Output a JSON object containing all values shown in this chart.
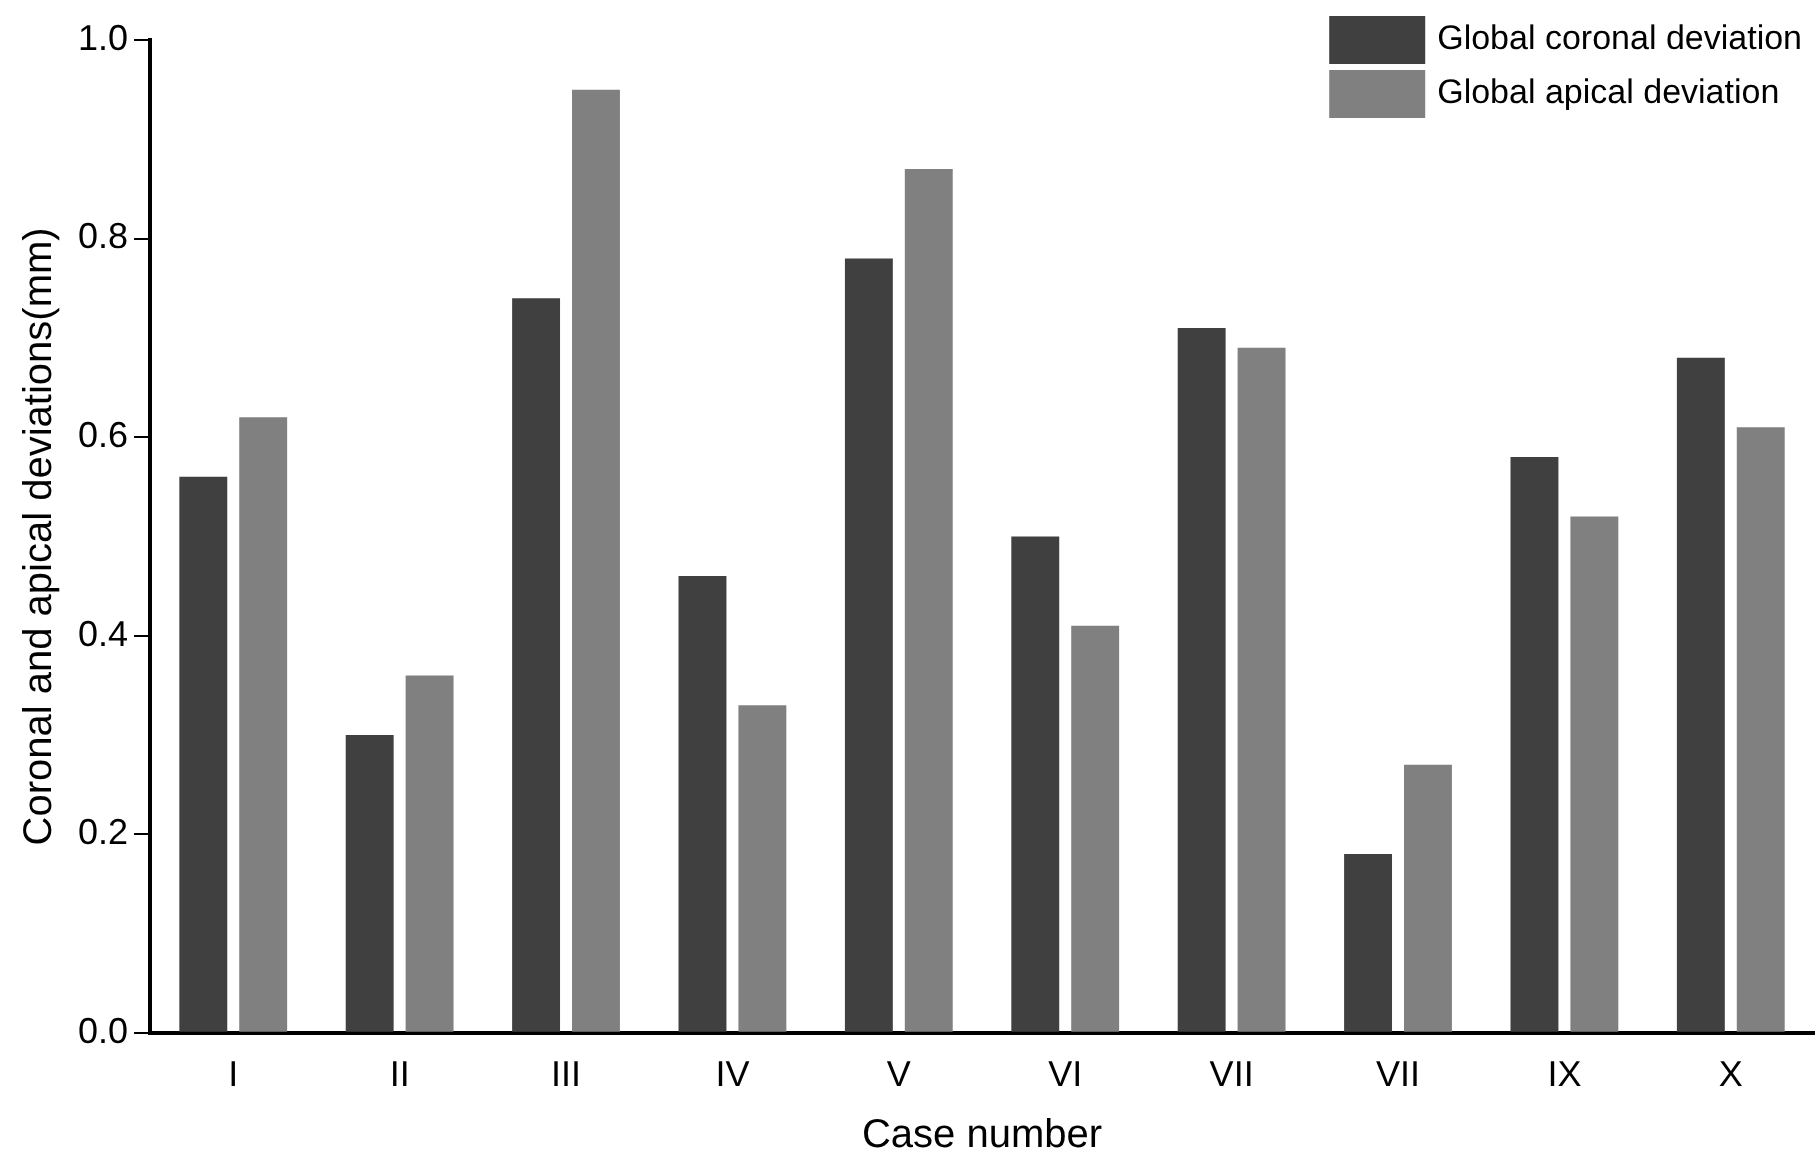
{
  "chart_data": {
    "type": "bar",
    "xlabel": "Case number",
    "ylabel": "Coronal and apical deviations(mm)",
    "categories": [
      "I",
      "II",
      "III",
      "IV",
      "V",
      "VI",
      "VII",
      "VII",
      "IX",
      "X"
    ],
    "series": [
      {
        "name": "Global coronal deviation",
        "color": "#404040",
        "values": [
          0.56,
          0.3,
          0.74,
          0.46,
          0.78,
          0.5,
          0.71,
          0.18,
          0.58,
          0.68
        ]
      },
      {
        "name": "Global apical deviation",
        "color": "#808080",
        "values": [
          0.62,
          0.36,
          0.95,
          0.33,
          0.87,
          0.41,
          0.69,
          0.27,
          0.52,
          0.61
        ]
      }
    ],
    "ylim": [
      0,
      1.0
    ],
    "yticks": [
      {
        "value": 0,
        "label": "0.0"
      },
      {
        "value": 0.2,
        "label": "0.2"
      },
      {
        "value": 0.4,
        "label": "0.4"
      },
      {
        "value": 0.6,
        "label": "0.6"
      },
      {
        "value": 0.8,
        "label": "0.8"
      },
      {
        "value": 1.0,
        "label": "1.0"
      }
    ],
    "grid": false,
    "legend": "top right"
  }
}
